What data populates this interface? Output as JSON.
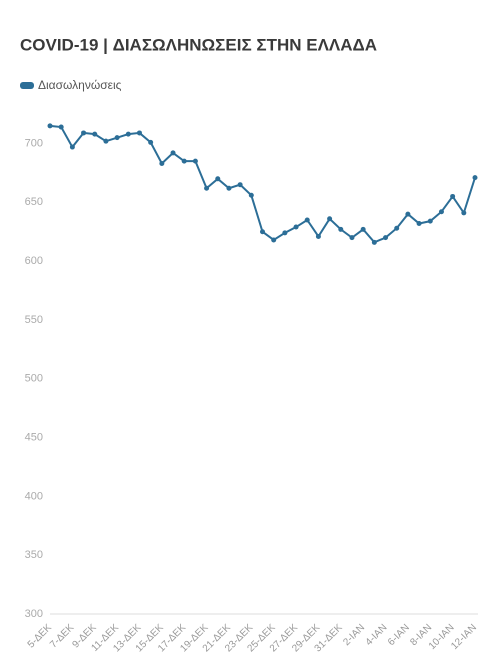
{
  "chart_data": {
    "type": "line",
    "title": "COVID-19 | ΔΙΑΣΩΛΗΝΩΣΕΙΣ ΣΤΗΝ ΕΛΛΑΔΑ",
    "categories": [
      "5-ΔΕΚ",
      null,
      "7-ΔΕΚ",
      null,
      "9-ΔΕΚ",
      null,
      "11-ΔΕΚ",
      null,
      "13-ΔΕΚ",
      null,
      "15-ΔΕΚ",
      null,
      "17-ΔΕΚ",
      null,
      "19-ΔΕΚ",
      null,
      "21-ΔΕΚ",
      null,
      "23-ΔΕΚ",
      null,
      "25-ΔΕΚ",
      null,
      "27-ΔΕΚ",
      null,
      "29-ΔΕΚ",
      null,
      "31-ΔΕΚ",
      null,
      "2-ΙΑΝ",
      null,
      "4-ΙΑΝ",
      null,
      "6-ΙΑΝ",
      null,
      "8-ΙΑΝ",
      null,
      "10-ΙΑΝ",
      null,
      "12-ΙΑΝ"
    ],
    "series": [
      {
        "name": "Διασωληνώσεις",
        "color": "#2c6e97",
        "values": [
          715,
          714,
          697,
          709,
          708,
          702,
          705,
          708,
          709,
          701,
          683,
          692,
          685,
          685,
          662,
          670,
          662,
          665,
          656,
          625,
          618,
          624,
          629,
          635,
          621,
          636,
          627,
          620,
          627,
          616,
          620,
          628,
          640,
          632,
          634,
          642,
          655,
          641,
          671
        ]
      }
    ],
    "ylim": [
      300,
      720
    ],
    "yticks": [
      300,
      350,
      400,
      450,
      500,
      550,
      600,
      650,
      700
    ],
    "grid": false
  }
}
